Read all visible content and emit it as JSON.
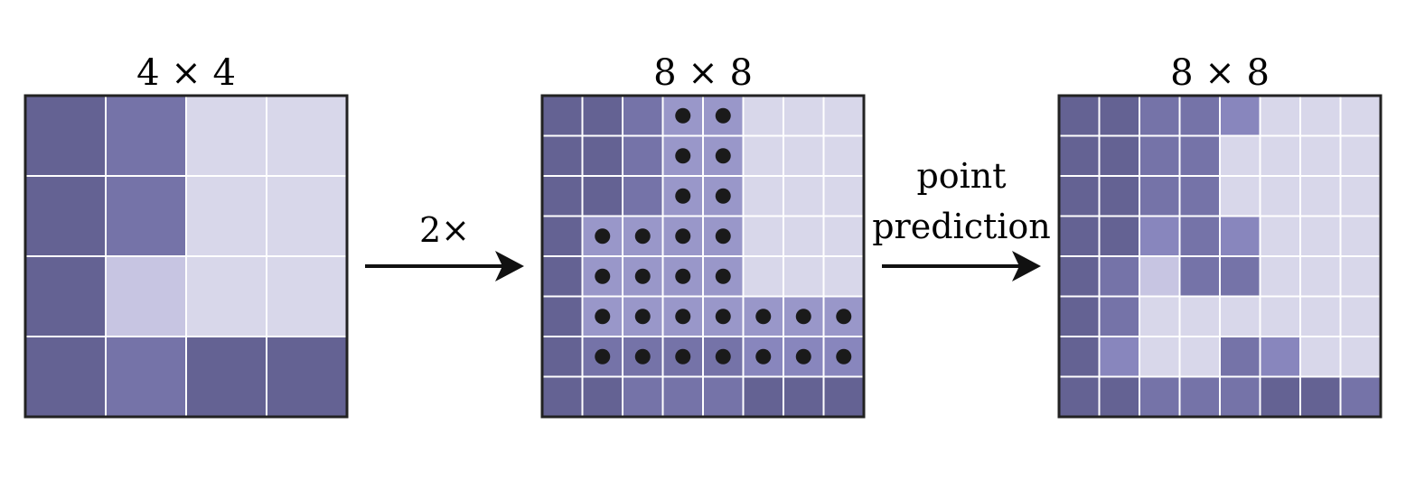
{
  "palette": {
    "d": "#646293",
    "m": "#7573a8",
    "l": "#d8d7ea",
    "p": "#c7c5e2",
    "v": "#8886bd",
    "q": "#9997c9",
    "grid": "#ffffff",
    "border": "#222222",
    "dot": "#1a1a1a",
    "arrow": "#111111"
  },
  "panels": [
    {
      "label": "4 × 4",
      "size": 4,
      "cells": [
        [
          "d",
          "m",
          "l",
          "l"
        ],
        [
          "d",
          "m",
          "l",
          "l"
        ],
        [
          "d",
          "p",
          "l",
          "l"
        ],
        [
          "d",
          "m",
          "d",
          "d"
        ]
      ],
      "dots": []
    },
    {
      "label": "8 × 8",
      "size": 8,
      "cells": [
        [
          "d",
          "d",
          "m",
          "q",
          "q",
          "l",
          "l",
          "l"
        ],
        [
          "d",
          "d",
          "m",
          "q",
          "q",
          "l",
          "l",
          "l"
        ],
        [
          "d",
          "d",
          "m",
          "q",
          "q",
          "l",
          "l",
          "l"
        ],
        [
          "d",
          "q",
          "q",
          "q",
          "q",
          "l",
          "l",
          "l"
        ],
        [
          "d",
          "q",
          "q",
          "q",
          "q",
          "l",
          "l",
          "l"
        ],
        [
          "d",
          "q",
          "q",
          "q",
          "q",
          "q",
          "q",
          "q"
        ],
        [
          "d",
          "m",
          "m",
          "m",
          "m",
          "v",
          "v",
          "v"
        ],
        [
          "d",
          "d",
          "m",
          "m",
          "m",
          "d",
          "d",
          "d"
        ]
      ],
      "dots": [
        [
          0,
          3
        ],
        [
          0,
          4
        ],
        [
          1,
          3
        ],
        [
          1,
          4
        ],
        [
          2,
          3
        ],
        [
          2,
          4
        ],
        [
          3,
          1
        ],
        [
          3,
          2
        ],
        [
          3,
          3
        ],
        [
          3,
          4
        ],
        [
          4,
          1
        ],
        [
          4,
          2
        ],
        [
          4,
          3
        ],
        [
          4,
          4
        ],
        [
          5,
          1
        ],
        [
          5,
          2
        ],
        [
          5,
          3
        ],
        [
          5,
          4
        ],
        [
          5,
          5
        ],
        [
          5,
          6
        ],
        [
          5,
          7
        ],
        [
          6,
          1
        ],
        [
          6,
          2
        ],
        [
          6,
          3
        ],
        [
          6,
          4
        ],
        [
          6,
          5
        ],
        [
          6,
          6
        ],
        [
          6,
          7
        ]
      ]
    },
    {
      "label": "8 × 8",
      "size": 8,
      "cells": [
        [
          "d",
          "d",
          "m",
          "m",
          "v",
          "l",
          "l",
          "l"
        ],
        [
          "d",
          "d",
          "m",
          "m",
          "l",
          "l",
          "l",
          "l"
        ],
        [
          "d",
          "d",
          "m",
          "m",
          "l",
          "l",
          "l",
          "l"
        ],
        [
          "d",
          "d",
          "v",
          "m",
          "v",
          "l",
          "l",
          "l"
        ],
        [
          "d",
          "m",
          "p",
          "m",
          "m",
          "l",
          "l",
          "l"
        ],
        [
          "d",
          "m",
          "l",
          "l",
          "l",
          "l",
          "l",
          "l"
        ],
        [
          "d",
          "v",
          "l",
          "l",
          "m",
          "v",
          "l",
          "l"
        ],
        [
          "d",
          "d",
          "m",
          "m",
          "m",
          "d",
          "d",
          "m"
        ]
      ],
      "dots": []
    }
  ],
  "arrows": [
    {
      "label_lines": [
        "2×"
      ]
    },
    {
      "label_lines": [
        "point",
        "prediction"
      ]
    }
  ]
}
